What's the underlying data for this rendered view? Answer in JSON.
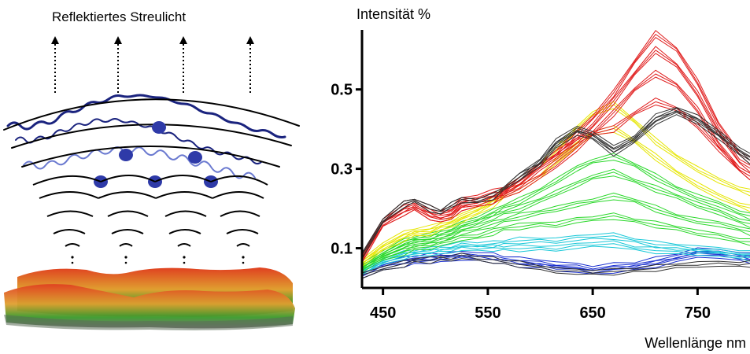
{
  "illustration": {
    "title": "Reflektiertes Streulicht"
  },
  "chart_data": {
    "type": "line",
    "ylabel": "Intensität %",
    "xlabel": "Wellenlänge nm",
    "xlim": [
      430,
      800
    ],
    "ylim": [
      0.0,
      0.65
    ],
    "x_ticks": [
      "450",
      "550",
      "650",
      "750"
    ],
    "x_tick_values": [
      450,
      550,
      650,
      750
    ],
    "y_ticks": [
      "0.5",
      "0.3",
      "0.1"
    ],
    "y_tick_values": [
      0.5,
      0.3,
      0.1
    ],
    "grid": false,
    "legend": "none",
    "x": [
      430,
      450,
      470,
      480,
      495,
      505,
      515,
      525,
      540,
      555,
      565,
      580,
      600,
      615,
      635,
      650,
      670,
      690,
      710,
      730,
      750,
      770,
      790,
      800
    ],
    "series": [
      {
        "group": "blue",
        "color": "#1a2fd0",
        "values": [
          0.03,
          0.05,
          0.06,
          0.065,
          0.07,
          0.07,
          0.075,
          0.075,
          0.075,
          0.07,
          0.065,
          0.06,
          0.055,
          0.05,
          0.045,
          0.04,
          0.045,
          0.05,
          0.06,
          0.07,
          0.085,
          0.08,
          0.075,
          0.07
        ]
      },
      {
        "group": "blue",
        "color": "#1a2fd0",
        "values": [
          0.035,
          0.06,
          0.07,
          0.075,
          0.08,
          0.08,
          0.085,
          0.085,
          0.085,
          0.08,
          0.075,
          0.07,
          0.065,
          0.06,
          0.055,
          0.05,
          0.055,
          0.06,
          0.07,
          0.08,
          0.095,
          0.09,
          0.085,
          0.08
        ]
      },
      {
        "group": "cyan",
        "color": "#18c8d8",
        "values": [
          0.04,
          0.065,
          0.08,
          0.085,
          0.09,
          0.09,
          0.095,
          0.1,
          0.1,
          0.1,
          0.1,
          0.1,
          0.1,
          0.1,
          0.105,
          0.11,
          0.11,
          0.1,
          0.095,
          0.09,
          0.09,
          0.085,
          0.08,
          0.075
        ]
      },
      {
        "group": "cyan",
        "color": "#18c8d8",
        "values": [
          0.04,
          0.07,
          0.085,
          0.09,
          0.095,
          0.1,
          0.105,
          0.11,
          0.11,
          0.11,
          0.115,
          0.12,
          0.12,
          0.12,
          0.125,
          0.13,
          0.13,
          0.12,
          0.11,
          0.105,
          0.1,
          0.095,
          0.09,
          0.085
        ]
      },
      {
        "group": "green",
        "color": "#2ad82a",
        "values": [
          0.045,
          0.075,
          0.09,
          0.1,
          0.105,
          0.11,
          0.12,
          0.125,
          0.13,
          0.14,
          0.15,
          0.155,
          0.16,
          0.16,
          0.17,
          0.175,
          0.18,
          0.17,
          0.16,
          0.15,
          0.14,
          0.13,
          0.12,
          0.115
        ]
      },
      {
        "group": "green",
        "color": "#2ad82a",
        "values": [
          0.05,
          0.08,
          0.1,
          0.11,
          0.115,
          0.12,
          0.13,
          0.14,
          0.15,
          0.16,
          0.17,
          0.18,
          0.19,
          0.2,
          0.21,
          0.22,
          0.23,
          0.22,
          0.2,
          0.18,
          0.17,
          0.16,
          0.15,
          0.14
        ]
      },
      {
        "group": "green",
        "color": "#2ad82a",
        "values": [
          0.05,
          0.085,
          0.11,
          0.12,
          0.125,
          0.13,
          0.14,
          0.15,
          0.165,
          0.18,
          0.19,
          0.2,
          0.22,
          0.24,
          0.26,
          0.28,
          0.29,
          0.27,
          0.25,
          0.23,
          0.21,
          0.19,
          0.17,
          0.16
        ]
      },
      {
        "group": "green",
        "color": "#2ad82a",
        "values": [
          0.055,
          0.09,
          0.115,
          0.125,
          0.13,
          0.14,
          0.15,
          0.16,
          0.175,
          0.19,
          0.205,
          0.22,
          0.245,
          0.27,
          0.3,
          0.32,
          0.33,
          0.31,
          0.28,
          0.25,
          0.23,
          0.21,
          0.19,
          0.18
        ]
      },
      {
        "group": "yellow",
        "color": "#e6e600",
        "values": [
          0.06,
          0.1,
          0.125,
          0.135,
          0.14,
          0.15,
          0.16,
          0.17,
          0.19,
          0.21,
          0.23,
          0.25,
          0.28,
          0.32,
          0.36,
          0.39,
          0.4,
          0.37,
          0.33,
          0.29,
          0.26,
          0.23,
          0.21,
          0.2
        ]
      },
      {
        "group": "yellow",
        "color": "#e6e600",
        "values": [
          0.065,
          0.11,
          0.135,
          0.145,
          0.15,
          0.16,
          0.17,
          0.18,
          0.2,
          0.22,
          0.25,
          0.27,
          0.31,
          0.35,
          0.4,
          0.44,
          0.46,
          0.42,
          0.37,
          0.33,
          0.3,
          0.27,
          0.25,
          0.24
        ]
      },
      {
        "group": "red",
        "color": "#e01c1c",
        "values": [
          0.07,
          0.16,
          0.19,
          0.2,
          0.18,
          0.17,
          0.18,
          0.2,
          0.21,
          0.22,
          0.23,
          0.25,
          0.28,
          0.31,
          0.35,
          0.39,
          0.44,
          0.5,
          0.54,
          0.51,
          0.45,
          0.36,
          0.3,
          0.28
        ]
      },
      {
        "group": "red",
        "color": "#e01c1c",
        "values": [
          0.075,
          0.17,
          0.2,
          0.21,
          0.19,
          0.18,
          0.19,
          0.21,
          0.22,
          0.23,
          0.24,
          0.26,
          0.3,
          0.33,
          0.37,
          0.41,
          0.47,
          0.54,
          0.6,
          0.56,
          0.49,
          0.39,
          0.32,
          0.3
        ]
      },
      {
        "group": "red",
        "color": "#e01c1c",
        "values": [
          0.08,
          0.17,
          0.21,
          0.22,
          0.2,
          0.19,
          0.2,
          0.22,
          0.23,
          0.24,
          0.25,
          0.27,
          0.31,
          0.34,
          0.39,
          0.43,
          0.49,
          0.57,
          0.64,
          0.6,
          0.52,
          0.41,
          0.34,
          0.32
        ]
      },
      {
        "group": "red",
        "color": "#e01c1c",
        "values": [
          0.07,
          0.16,
          0.19,
          0.2,
          0.18,
          0.17,
          0.18,
          0.2,
          0.21,
          0.22,
          0.24,
          0.27,
          0.31,
          0.34,
          0.37,
          0.39,
          0.4,
          0.44,
          0.47,
          0.45,
          0.41,
          0.35,
          0.3,
          0.28
        ]
      },
      {
        "group": "black",
        "color": "#303030",
        "values": [
          0.08,
          0.17,
          0.21,
          0.22,
          0.2,
          0.19,
          0.21,
          0.22,
          0.22,
          0.23,
          0.25,
          0.28,
          0.31,
          0.36,
          0.39,
          0.38,
          0.34,
          0.37,
          0.42,
          0.44,
          0.42,
          0.38,
          0.34,
          0.32
        ]
      },
      {
        "group": "black",
        "color": "#303030",
        "values": [
          0.08,
          0.17,
          0.21,
          0.22,
          0.2,
          0.19,
          0.21,
          0.22,
          0.22,
          0.23,
          0.25,
          0.28,
          0.32,
          0.37,
          0.4,
          0.39,
          0.35,
          0.38,
          0.43,
          0.45,
          0.43,
          0.39,
          0.35,
          0.33
        ]
      },
      {
        "group": "black",
        "color": "#303030",
        "values": [
          0.03,
          0.05,
          0.06,
          0.07,
          0.07,
          0.075,
          0.075,
          0.08,
          0.075,
          0.07,
          0.065,
          0.06,
          0.05,
          0.045,
          0.04,
          0.04,
          0.04,
          0.045,
          0.05,
          0.055,
          0.06,
          0.06,
          0.06,
          0.06
        ]
      }
    ]
  }
}
